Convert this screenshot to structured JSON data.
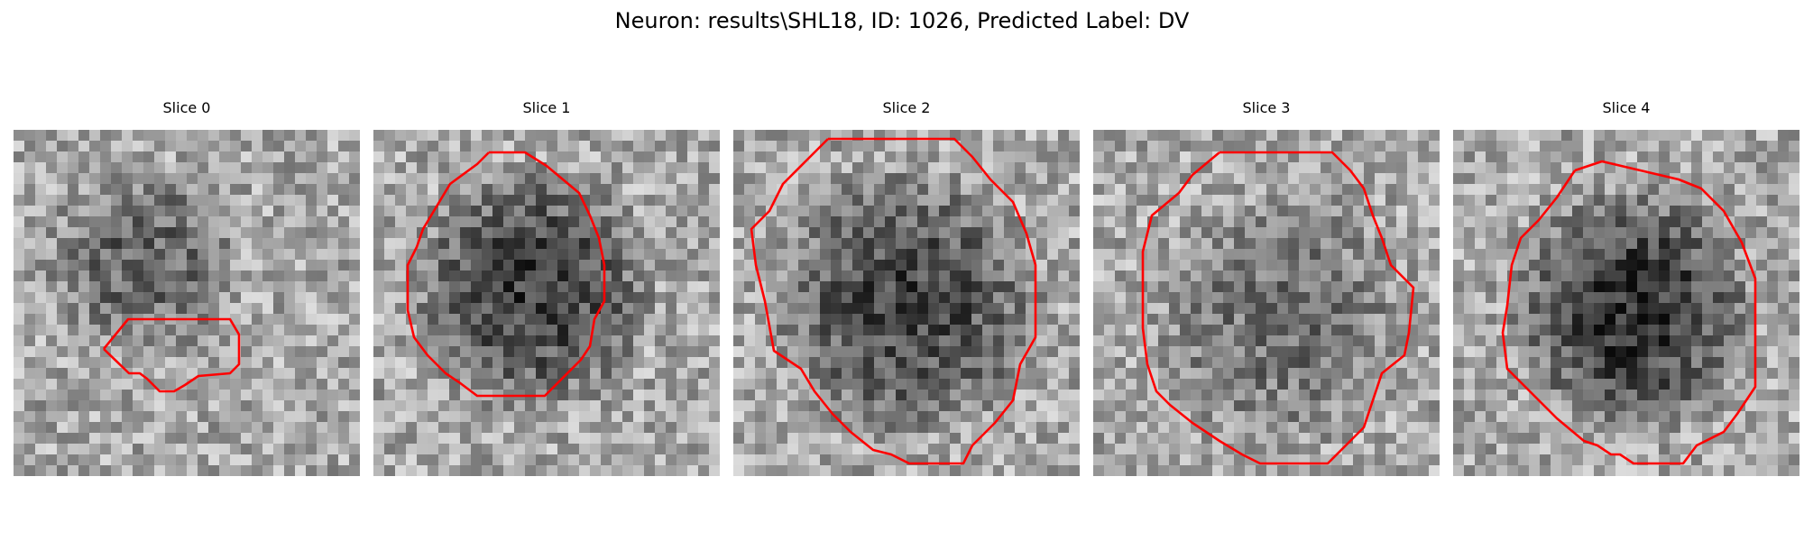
{
  "figure": {
    "title": "Neuron: results\\SHL18, ID: 1026, Predicted Label: DV"
  },
  "panels": [
    {
      "title": "Slice 0"
    },
    {
      "title": "Slice 1"
    },
    {
      "title": "Slice 2"
    },
    {
      "title": "Slice 3"
    },
    {
      "title": "Slice 4"
    }
  ],
  "colors": {
    "contour": "#ff0000",
    "background": "#ffffff"
  }
}
